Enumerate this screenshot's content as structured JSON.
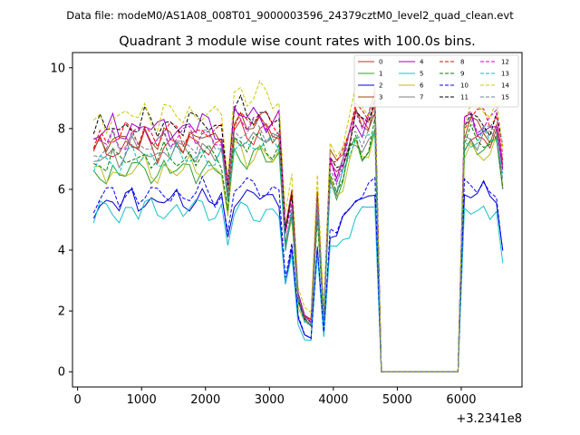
{
  "supertitle": "Data file: modeM0/AS1A08_008T01_9000003596_24379cztM0_level2_quad_clean.evt",
  "chart_data": {
    "type": "line",
    "title": "Quadrant 3 module wise count rates with 100.0s bins.",
    "xlabel": "",
    "ylabel": "",
    "x_offset_label": "+3.2341e8",
    "xlim": [
      -80,
      6950
    ],
    "ylim": [
      -0.5,
      10.5
    ],
    "x_ticks": [
      0,
      1000,
      2000,
      3000,
      4000,
      5000,
      6000
    ],
    "x_tick_labels": [
      "0",
      "1000",
      "2000",
      "3000",
      "4000",
      "5000",
      "6000"
    ],
    "y_ticks": [
      0,
      2,
      4,
      6,
      8,
      10
    ],
    "y_tick_labels": [
      "0",
      "2",
      "4",
      "6",
      "8",
      "10"
    ],
    "grid": false,
    "legend_position": "top-right",
    "legend_columns": 4,
    "series": [
      {
        "name": "0",
        "color": "#d62728",
        "dash": "solid",
        "base": [
          7.4,
          7.8,
          8.3,
          8.3,
          7.8,
          7.6,
          7.6,
          7.4
        ]
      },
      {
        "name": "1",
        "color": "#2ca02c",
        "dash": "solid",
        "base": [
          6.6,
          7.0,
          7.6,
          7.6,
          7.0,
          7.4,
          7.3,
          7.0
        ]
      },
      {
        "name": "2",
        "color": "#0000cc",
        "dash": "solid",
        "base": [
          5.6,
          5.7,
          5.6,
          5.7,
          5.5,
          6.8,
          5.8,
          4.5
        ]
      },
      {
        "name": "3",
        "color": "#9a4a14",
        "dash": "solid",
        "base": [
          7.6,
          8.0,
          8.4,
          8.6,
          8.0,
          8.0,
          7.9,
          7.5
        ]
      },
      {
        "name": "4",
        "color": "#9900cc",
        "dash": "solid",
        "base": [
          8.0,
          8.3,
          8.4,
          8.3,
          7.9,
          8.1,
          8.0,
          7.6
        ]
      },
      {
        "name": "5",
        "color": "#17becf",
        "dash": "solid",
        "base": [
          5.3,
          5.2,
          5.2,
          5.1,
          5.0,
          6.4,
          5.3,
          3.6
        ]
      },
      {
        "name": "6",
        "color": "#bcbd22",
        "dash": "solid",
        "base": [
          6.6,
          7.1,
          7.4,
          7.5,
          6.9,
          7.5,
          7.2,
          6.7
        ]
      },
      {
        "name": "7",
        "color": "#7f7f7f",
        "dash": "solid",
        "base": [
          7.2,
          7.6,
          7.6,
          7.8,
          7.1,
          7.8,
          7.6,
          6.9
        ]
      },
      {
        "name": "8",
        "color": "#ff0000",
        "dash": "dashed",
        "base": [
          7.8,
          8.2,
          8.3,
          8.6,
          8.2,
          8.5,
          8.3,
          7.8
        ]
      },
      {
        "name": "9",
        "color": "#008000",
        "dash": "dashed",
        "base": [
          7.0,
          7.4,
          7.6,
          7.6,
          7.2,
          7.7,
          7.5,
          7.0
        ]
      },
      {
        "name": "10",
        "color": "#0000ff",
        "dash": "dashed",
        "base": [
          5.8,
          6.0,
          5.8,
          5.8,
          5.7,
          6.5,
          6.0,
          4.4
        ]
      },
      {
        "name": "11",
        "color": "#000000",
        "dash": "dashed",
        "base": [
          8.1,
          8.4,
          8.1,
          8.3,
          8.0,
          8.3,
          8.2,
          7.9
        ]
      },
      {
        "name": "12",
        "color": "#cc00cc",
        "dash": "dashed",
        "base": [
          7.7,
          8.2,
          8.3,
          8.3,
          8.0,
          8.4,
          8.2,
          7.6
        ]
      },
      {
        "name": "13",
        "color": "#00bfbf",
        "dash": "dashed",
        "base": [
          7.0,
          7.4,
          7.6,
          7.7,
          7.3,
          7.9,
          7.6,
          7.1
        ]
      },
      {
        "name": "14",
        "color": "#c8c800",
        "dash": "dashed",
        "base": [
          8.4,
          9.0,
          9.4,
          9.0,
          8.5,
          8.6,
          8.5,
          8.2
        ]
      },
      {
        "name": "15",
        "color": "#708090",
        "dash": "dashed",
        "base": [
          7.5,
          7.8,
          7.9,
          8.1,
          7.6,
          8.0,
          7.9,
          7.4
        ]
      }
    ],
    "time_profile": {
      "x": [
        250,
        350,
        450,
        550,
        650,
        750,
        850,
        950,
        1050,
        1150,
        1250,
        1350,
        1450,
        1550,
        1650,
        1750,
        1850,
        1950,
        2050,
        2150,
        2250,
        2350,
        2450,
        2550,
        2650,
        2750,
        2850,
        2950,
        3050,
        3150,
        3250,
        3350,
        3450,
        3550,
        3650,
        3750,
        3850,
        3950,
        4050,
        4150,
        4250,
        4350,
        4450,
        4550,
        4650,
        4750,
        4850,
        4950,
        5050,
        5150,
        5250,
        5350,
        5450,
        5550,
        5650,
        5750,
        5850,
        5950,
        6050,
        6150,
        6250,
        6350,
        6450,
        6550,
        6650
      ],
      "level": [
        0.96,
        1.0,
        0.98,
        1.01,
        0.97,
        1.0,
        1.02,
        0.99,
        1.03,
        1.0,
        0.98,
        1.02,
        1.0,
        1.01,
        0.99,
        1.02,
        1.0,
        1.03,
        1.01,
        0.99,
        1.0,
        0.78,
        1.02,
        1.03,
        1.0,
        1.01,
        1.02,
        1.0,
        0.99,
        1.0,
        0.55,
        0.7,
        0.3,
        0.22,
        0.2,
        0.7,
        0.22,
        0.83,
        0.78,
        0.84,
        0.93,
        1.06,
        1.02,
        1.04,
        1.12,
        0.0,
        0.0,
        0.0,
        0.0,
        0.0,
        0.0,
        0.0,
        0.0,
        0.0,
        0.0,
        0.0,
        0.0,
        0.0,
        1.0,
        1.03,
        1.0,
        1.01,
        0.99,
        1.02,
        0.9
      ],
      "segment": [
        0,
        0,
        0,
        0,
        0,
        0,
        0,
        0,
        0,
        0,
        0,
        0,
        0,
        0,
        0,
        0,
        0,
        0,
        0,
        0,
        0,
        0,
        1,
        1,
        1,
        1,
        1,
        1,
        1,
        1,
        2,
        2,
        2,
        2,
        2,
        2,
        2,
        3,
        3,
        3,
        3,
        4,
        4,
        4,
        4,
        5,
        5,
        5,
        5,
        5,
        5,
        5,
        5,
        5,
        5,
        5,
        5,
        5,
        6,
        6,
        6,
        6,
        6,
        6,
        7
      ]
    }
  }
}
